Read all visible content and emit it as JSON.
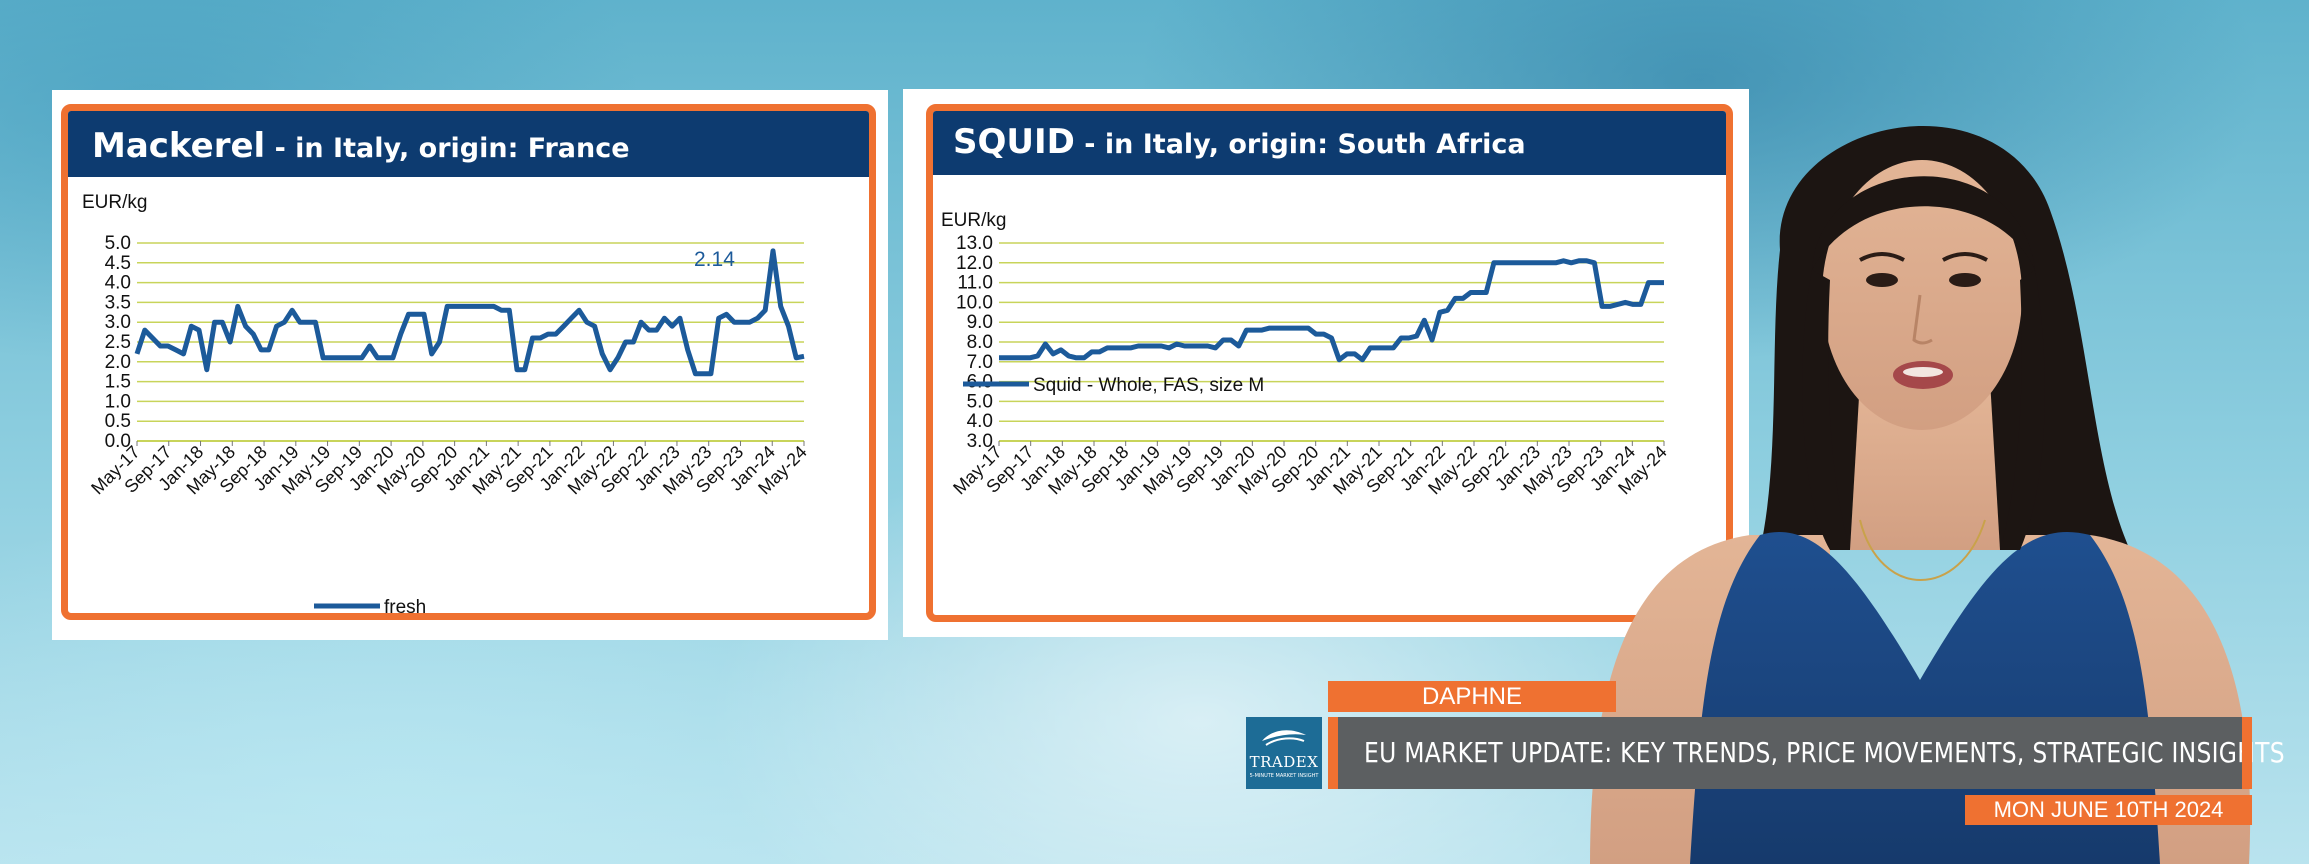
{
  "charts": [
    {
      "title_main": "Mackerel",
      "title_sub": " - in Italy, origin: France",
      "unit": "EUR/kg",
      "annotation": "2.14"
    },
    {
      "title_main": "SQUID",
      "title_sub": " - in Italy, origin: South Africa",
      "unit": "EUR/kg"
    }
  ],
  "chart_data": [
    {
      "type": "line",
      "title": "Mackerel - in Italy, origin: France",
      "ylabel": "EUR/kg",
      "ylim": [
        0,
        5
      ],
      "yticks": [
        "5.0",
        "4.5",
        "4.0",
        "3.5",
        "3.0",
        "2.5",
        "2.0",
        "1.5",
        "1.0",
        "0.5",
        "0.0"
      ],
      "xtick_labels": [
        "May-17",
        "Sep-17",
        "Jan-18",
        "May-18",
        "Sep-18",
        "Jan-19",
        "May-19",
        "Sep-19",
        "Jan-20",
        "May-20",
        "Sep-20",
        "Jan-21",
        "May-21",
        "Sep-21",
        "Jan-22",
        "May-22",
        "Sep-22",
        "Jan-23",
        "May-23",
        "Sep-23",
        "Jan-24",
        "May-24"
      ],
      "grid": true,
      "legend_position": "bottom",
      "annotation": "2.14",
      "series": [
        {
          "name": "fresh",
          "color": "#1c5a9a",
          "values": [
            2.2,
            2.8,
            2.6,
            2.4,
            2.4,
            2.3,
            2.2,
            2.9,
            2.8,
            1.8,
            3.0,
            3.0,
            2.5,
            3.4,
            2.9,
            2.7,
            2.3,
            2.3,
            2.9,
            3.0,
            3.3,
            3.0,
            3.0,
            3.0,
            2.1,
            2.1,
            2.1,
            2.1,
            2.1,
            2.1,
            2.4,
            2.1,
            2.1,
            2.1,
            2.7,
            3.2,
            3.2,
            3.2,
            2.2,
            2.5,
            3.4,
            3.4,
            3.4,
            3.4,
            3.4,
            3.4,
            3.4,
            3.3,
            3.3,
            1.8,
            1.8,
            2.6,
            2.6,
            2.7,
            2.7,
            2.9,
            3.1,
            3.3,
            3.0,
            2.9,
            2.2,
            1.8,
            2.1,
            2.5,
            2.5,
            3.0,
            2.8,
            2.8,
            3.1,
            2.9,
            3.1,
            2.3,
            1.7,
            1.7,
            1.7,
            3.1,
            3.2,
            3.0,
            3.0,
            3.0,
            3.1,
            3.3,
            4.8,
            3.4,
            2.9,
            2.1,
            2.14
          ]
        }
      ]
    },
    {
      "type": "line",
      "title": "SQUID - in Italy, origin: South Africa",
      "ylabel": "EUR/kg",
      "ylim": [
        3,
        13
      ],
      "yticks": [
        "13.0",
        "12.0",
        "11.0",
        "10.0",
        "9.0",
        "8.0",
        "7.0",
        "6.0",
        "5.0",
        "4.0",
        "3.0"
      ],
      "xtick_labels": [
        "May-17",
        "Sep-17",
        "Jan-18",
        "May-18",
        "Sep-18",
        "Jan-19",
        "May-19",
        "Sep-19",
        "Jan-20",
        "May-20",
        "Sep-20",
        "Jan-21",
        "May-21",
        "Sep-21",
        "Jan-22",
        "May-22",
        "Sep-22",
        "Jan-23",
        "May-23",
        "Sep-23",
        "Jan-24",
        "May-24"
      ],
      "grid": true,
      "legend_position": "bottom-left",
      "series": [
        {
          "name": "Squid - Whole, FAS, size M",
          "color": "#1c5a9a",
          "values": [
            7.2,
            7.2,
            7.2,
            7.2,
            7.2,
            7.3,
            7.9,
            7.4,
            7.6,
            7.3,
            7.2,
            7.2,
            7.5,
            7.5,
            7.7,
            7.7,
            7.7,
            7.7,
            7.8,
            7.8,
            7.8,
            7.8,
            7.7,
            7.9,
            7.8,
            7.8,
            7.8,
            7.8,
            7.7,
            8.1,
            8.1,
            7.8,
            8.6,
            8.6,
            8.6,
            8.7,
            8.7,
            8.7,
            8.7,
            8.7,
            8.7,
            8.4,
            8.4,
            8.2,
            7.1,
            7.4,
            7.4,
            7.1,
            7.7,
            7.7,
            7.7,
            7.7,
            8.2,
            8.2,
            8.3,
            9.1,
            8.1,
            9.5,
            9.6,
            10.2,
            10.2,
            10.5,
            10.5,
            10.5,
            12.0,
            12.0,
            12.0,
            12.0,
            12.0,
            12.0,
            12.0,
            12.0,
            12.0,
            12.1,
            12.0,
            12.1,
            12.1,
            12.0,
            9.8,
            9.8,
            9.9,
            10.0,
            9.9,
            9.9,
            11.0,
            11.0,
            11.0
          ]
        }
      ]
    }
  ],
  "lower_third": {
    "presenter_name": "DAPHNE",
    "headline": "EU MARKET UPDATE: KEY TRENDS, PRICE MOVEMENTS, STRATEGIC INSIGHTS",
    "date": "MON JUNE 10TH 2024",
    "logo_text": "TRADEX",
    "logo_subtext": "5-MINUTE MARKET INSIGHT"
  },
  "colors": {
    "accent": "#ef7131",
    "header_navy": "#0d3b70",
    "series_blue": "#1c5a9a",
    "grid": "#c8d45a",
    "headline_bar": "#5c5f61",
    "logo_bg": "#1d6c96"
  }
}
